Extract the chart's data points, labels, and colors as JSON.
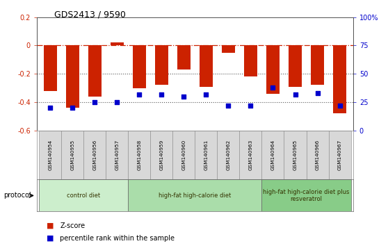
{
  "title": "GDS2413 / 9590",
  "samples": [
    "GSM140954",
    "GSM140955",
    "GSM140956",
    "GSM140957",
    "GSM140958",
    "GSM140959",
    "GSM140960",
    "GSM140961",
    "GSM140962",
    "GSM140963",
    "GSM140964",
    "GSM140965",
    "GSM140966",
    "GSM140967"
  ],
  "zscore": [
    -0.32,
    -0.44,
    -0.36,
    0.02,
    -0.3,
    -0.28,
    -0.17,
    -0.29,
    -0.05,
    -0.22,
    -0.34,
    -0.29,
    -0.28,
    -0.48
  ],
  "percentile_right": [
    20,
    20,
    25,
    25,
    32,
    32,
    30,
    32,
    22,
    22,
    38,
    32,
    33,
    22
  ],
  "ylim_left": [
    -0.6,
    0.2
  ],
  "ylim_right": [
    0,
    100
  ],
  "bar_color": "#cc2200",
  "dot_color": "#0000cc",
  "groups": [
    {
      "label": "control diet",
      "start": 0,
      "end": 4,
      "color": "#cceecc"
    },
    {
      "label": "high-fat high-calorie diet",
      "start": 4,
      "end": 10,
      "color": "#aaddaa"
    },
    {
      "label": "high-fat high-calorie diet plus\nresveratrol",
      "start": 10,
      "end": 14,
      "color": "#88cc88"
    }
  ],
  "zero_line_color": "#cc2200",
  "dotted_line_color": "#555555",
  "legend_zscore": "Z-score",
  "legend_percentile": "percentile rank within the sample",
  "protocol_label": "protocol"
}
